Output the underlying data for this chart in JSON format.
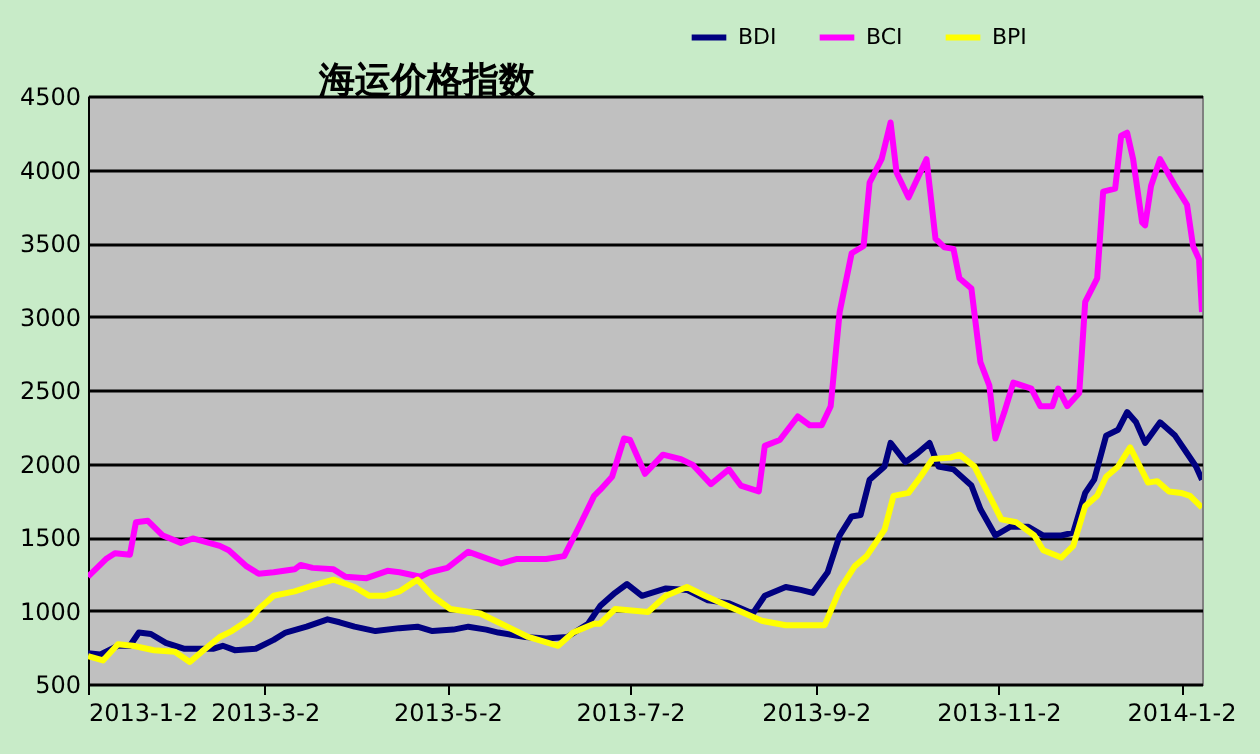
{
  "chart_data": {
    "type": "line",
    "title": "海运价格指数",
    "xlim": [
      "2013-01-02",
      "2014-01-09"
    ],
    "xticks": [
      {
        "value": "2013-01-02",
        "label": "2013-1-2"
      },
      {
        "value": "2013-03-02",
        "label": "2013-3-2"
      },
      {
        "value": "2013-05-02",
        "label": "2013-5-2"
      },
      {
        "value": "2013-07-02",
        "label": "2013-7-2"
      },
      {
        "value": "2013-09-02",
        "label": "2013-9-2"
      },
      {
        "value": "2013-11-02",
        "label": "2013-11-2"
      },
      {
        "value": "2014-01-02",
        "label": "2014-1-2"
      }
    ],
    "ylim": [
      500,
      4500
    ],
    "yticks": [
      500,
      1000,
      1500,
      2000,
      2500,
      3000,
      3500,
      4000,
      4500
    ],
    "grid": "y",
    "legend": "top",
    "marker": "none",
    "line_style": "solid",
    "series": [
      {
        "name": "BDI",
        "color": "#000080",
        "x": [
          "2013-01-02",
          "2013-01-06",
          "2013-01-12",
          "2013-01-16",
          "2013-01-19",
          "2013-01-23",
          "2013-01-28",
          "2013-02-03",
          "2013-02-13",
          "2013-02-16",
          "2013-02-20",
          "2013-02-27",
          "2013-03-05",
          "2013-03-09",
          "2013-03-16",
          "2013-03-23",
          "2013-03-27",
          "2013-04-01",
          "2013-04-08",
          "2013-04-16",
          "2013-04-22",
          "2013-04-27",
          "2013-05-04",
          "2013-05-09",
          "2013-05-15",
          "2013-05-19",
          "2013-05-28",
          "2013-06-04",
          "2013-06-11",
          "2013-06-18",
          "2013-06-22",
          "2013-06-27",
          "2013-07-01",
          "2013-07-06",
          "2013-07-14",
          "2013-07-21",
          "2013-07-28",
          "2013-08-04",
          "2013-08-12",
          "2013-08-16",
          "2013-08-23",
          "2013-08-28",
          "2013-09-01",
          "2013-09-06",
          "2013-09-10",
          "2013-09-14",
          "2013-09-17",
          "2013-09-20",
          "2013-09-25",
          "2013-09-27",
          "2013-10-02",
          "2013-10-06",
          "2013-10-10",
          "2013-10-13",
          "2013-10-18",
          "2013-10-24",
          "2013-10-27",
          "2013-11-01",
          "2013-11-06",
          "2013-11-12",
          "2013-11-17",
          "2013-11-23",
          "2013-11-27",
          "2013-12-01",
          "2013-12-04",
          "2013-12-08",
          "2013-12-12",
          "2013-12-15",
          "2013-12-18",
          "2013-12-21",
          "2013-12-26",
          "2013-12-31",
          "2014-01-04",
          "2014-01-07",
          "2014-01-09"
        ],
        "values": [
          710,
          700,
          760,
          760,
          850,
          840,
          780,
          740,
          740,
          760,
          730,
          740,
          800,
          850,
          890,
          940,
          920,
          890,
          860,
          880,
          890,
          860,
          870,
          890,
          870,
          850,
          820,
          810,
          820,
          910,
          1030,
          1120,
          1180,
          1100,
          1150,
          1140,
          1070,
          1050,
          980,
          1100,
          1160,
          1140,
          1120,
          1260,
          1510,
          1640,
          1650,
          1890,
          1980,
          2140,
          2010,
          2070,
          2140,
          1980,
          1960,
          1850,
          1690,
          1510,
          1570,
          1570,
          1510,
          1510,
          1530,
          1800,
          1890,
          2190,
          2230,
          2350,
          2280,
          2140,
          2280,
          2190,
          2070,
          1980,
          1890
        ]
      },
      {
        "name": "BCI",
        "color": "#ff00ff",
        "x": [
          "2013-01-02",
          "2013-01-08",
          "2013-01-11",
          "2013-01-16",
          "2013-01-18",
          "2013-01-22",
          "2013-01-27",
          "2013-02-02",
          "2013-02-06",
          "2013-02-15",
          "2013-02-18",
          "2013-02-24",
          "2013-02-28",
          "2013-03-05",
          "2013-03-12",
          "2013-03-14",
          "2013-03-18",
          "2013-03-25",
          "2013-03-29",
          "2013-04-05",
          "2013-04-12",
          "2013-04-16",
          "2013-04-23",
          "2013-04-26",
          "2013-05-02",
          "2013-05-09",
          "2013-05-13",
          "2013-05-20",
          "2013-05-25",
          "2013-06-04",
          "2013-06-10",
          "2013-06-15",
          "2013-06-20",
          "2013-06-22",
          "2013-06-26",
          "2013-06-30",
          "2013-07-02",
          "2013-07-07",
          "2013-07-13",
          "2013-07-19",
          "2013-07-23",
          "2013-07-29",
          "2013-08-04",
          "2013-08-08",
          "2013-08-14",
          "2013-08-16",
          "2013-08-21",
          "2013-08-27",
          "2013-08-31",
          "2013-09-04",
          "2013-09-07",
          "2013-09-10",
          "2013-09-14",
          "2013-09-18",
          "2013-09-20",
          "2013-09-24",
          "2013-09-27",
          "2013-09-29",
          "2013-10-03",
          "2013-10-09",
          "2013-10-12",
          "2013-10-15",
          "2013-10-18",
          "2013-10-20",
          "2013-10-24",
          "2013-10-27",
          "2013-10-30",
          "2013-11-01",
          "2013-11-04",
          "2013-11-07",
          "2013-11-13",
          "2013-11-16",
          "2013-11-20",
          "2013-11-22",
          "2013-11-25",
          "2013-11-29",
          "2013-12-01",
          "2013-12-05",
          "2013-12-07",
          "2013-12-11",
          "2013-12-13",
          "2013-12-15",
          "2013-12-17",
          "2013-12-20",
          "2013-12-21",
          "2013-12-23",
          "2013-12-26",
          "2013-12-31",
          "2014-01-04",
          "2014-01-06",
          "2014-01-08",
          "2014-01-09"
        ],
        "values": [
          1230,
          1350,
          1390,
          1380,
          1600,
          1610,
          1510,
          1460,
          1490,
          1440,
          1410,
          1300,
          1250,
          1260,
          1280,
          1310,
          1290,
          1280,
          1230,
          1220,
          1270,
          1260,
          1230,
          1260,
          1290,
          1400,
          1370,
          1320,
          1350,
          1350,
          1370,
          1570,
          1780,
          1820,
          1910,
          2170,
          2160,
          1930,
          2060,
          2030,
          1990,
          1860,
          1960,
          1850,
          1810,
          2120,
          2160,
          2320,
          2260,
          2260,
          2390,
          3030,
          3430,
          3480,
          3910,
          4070,
          4320,
          3980,
          3810,
          4070,
          3530,
          3470,
          3460,
          3260,
          3190,
          2690,
          2530,
          2170,
          2350,
          2550,
          2510,
          2390,
          2390,
          2510,
          2390,
          2480,
          3100,
          3260,
          3850,
          3870,
          4230,
          4250,
          4070,
          3640,
          3620,
          3890,
          4070,
          3890,
          3760,
          3480,
          3390,
          3030
        ]
      },
      {
        "name": "BPI",
        "color": "#ffff00",
        "x": [
          "2013-01-02",
          "2013-01-07",
          "2013-01-12",
          "2013-01-17",
          "2013-01-24",
          "2013-01-31",
          "2013-02-05",
          "2013-02-09",
          "2013-02-15",
          "2013-02-19",
          "2013-02-25",
          "2013-02-28",
          "2013-03-05",
          "2013-03-12",
          "2013-03-18",
          "2013-03-25",
          "2013-04-01",
          "2013-04-06",
          "2013-04-11",
          "2013-04-16",
          "2013-04-22",
          "2013-04-27",
          "2013-05-03",
          "2013-05-13",
          "2013-05-20",
          "2013-05-29",
          "2013-06-08",
          "2013-06-13",
          "2013-06-20",
          "2013-06-22",
          "2013-06-27",
          "2013-07-08",
          "2013-07-14",
          "2013-07-21",
          "2013-07-27",
          "2013-08-06",
          "2013-08-15",
          "2013-08-23",
          "2013-09-05",
          "2013-09-10",
          "2013-09-15",
          "2013-09-19",
          "2013-09-25",
          "2013-09-28",
          "2013-10-03",
          "2013-10-07",
          "2013-10-11",
          "2013-10-17",
          "2013-10-20",
          "2013-10-25",
          "2013-10-29",
          "2013-11-03",
          "2013-11-08",
          "2013-11-14",
          "2013-11-17",
          "2013-11-23",
          "2013-11-27",
          "2013-12-01",
          "2013-12-05",
          "2013-12-08",
          "2013-12-12",
          "2013-12-16",
          "2013-12-18",
          "2013-12-22",
          "2013-12-25",
          "2013-12-29",
          "2014-01-02",
          "2014-01-05",
          "2014-01-09"
        ],
        "values": [
          690,
          660,
          770,
          760,
          730,
          720,
          650,
          720,
          820,
          860,
          940,
          1010,
          1100,
          1130,
          1170,
          1210,
          1160,
          1100,
          1100,
          1130,
          1210,
          1100,
          1010,
          980,
          910,
          820,
          760,
          850,
          910,
          910,
          1010,
          990,
          1100,
          1160,
          1100,
          1010,
          930,
          900,
          900,
          1140,
          1300,
          1370,
          1550,
          1780,
          1800,
          1910,
          2030,
          2040,
          2060,
          1980,
          1820,
          1620,
          1600,
          1510,
          1410,
          1360,
          1440,
          1710,
          1780,
          1910,
          1980,
          2110,
          2030,
          1870,
          1880,
          1810,
          1800,
          1780,
          1700
        ]
      }
    ]
  }
}
